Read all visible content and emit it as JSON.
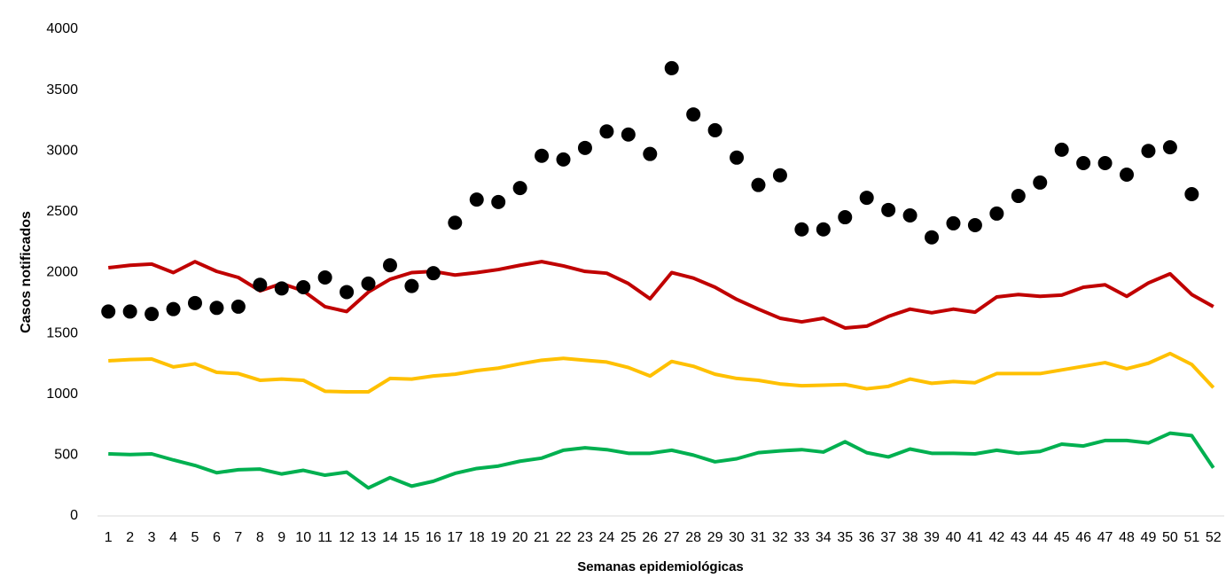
{
  "chart_data": {
    "type": "line",
    "x_label": "Semanas epidemiológicas",
    "y_label": "Casos notificados",
    "categories": [
      1,
      2,
      3,
      4,
      5,
      6,
      7,
      8,
      9,
      10,
      11,
      12,
      13,
      14,
      15,
      16,
      17,
      18,
      19,
      20,
      21,
      22,
      23,
      24,
      25,
      26,
      27,
      28,
      29,
      30,
      31,
      32,
      33,
      34,
      35,
      36,
      37,
      38,
      39,
      40,
      41,
      42,
      43,
      44,
      45,
      46,
      47,
      48,
      49,
      50,
      51,
      52
    ],
    "ylim": [
      0,
      4000
    ],
    "yticks": [
      0,
      500,
      1000,
      1500,
      2000,
      2500,
      3000,
      3500,
      4000
    ],
    "grid": false,
    "series": [
      {
        "type": "line",
        "color": "#c00000",
        "values": [
          2040,
          2060,
          2070,
          2000,
          2090,
          2010,
          1960,
          1850,
          1910,
          1850,
          1720,
          1680,
          1840,
          1945,
          2000,
          2010,
          1980,
          2000,
          2025,
          2060,
          2090,
          2055,
          2010,
          1995,
          1910,
          1785,
          2000,
          1955,
          1880,
          1780,
          1700,
          1625,
          1595,
          1625,
          1545,
          1560,
          1640,
          1700,
          1670,
          1700,
          1675,
          1800,
          1820,
          1805,
          1815,
          1880,
          1900,
          1805,
          1915,
          1990,
          1820,
          1720
        ]
      },
      {
        "type": "line",
        "color": "#ffc000",
        "values": [
          1275,
          1285,
          1290,
          1225,
          1250,
          1180,
          1170,
          1115,
          1125,
          1115,
          1025,
          1020,
          1020,
          1130,
          1125,
          1150,
          1165,
          1195,
          1215,
          1250,
          1280,
          1295,
          1280,
          1265,
          1220,
          1150,
          1270,
          1230,
          1165,
          1130,
          1115,
          1085,
          1070,
          1075,
          1080,
          1045,
          1065,
          1125,
          1090,
          1105,
          1095,
          1170,
          1170,
          1170,
          1200,
          1230,
          1260,
          1210,
          1255,
          1335,
          1245,
          1055
        ]
      },
      {
        "type": "line",
        "color": "#00b050",
        "values": [
          510,
          505,
          510,
          460,
          415,
          355,
          380,
          385,
          345,
          375,
          335,
          360,
          230,
          315,
          245,
          285,
          350,
          390,
          410,
          450,
          475,
          540,
          560,
          545,
          515,
          515,
          540,
          500,
          445,
          470,
          520,
          535,
          545,
          525,
          610,
          520,
          485,
          550,
          515,
          515,
          510,
          540,
          515,
          530,
          590,
          575,
          620,
          620,
          600,
          680,
          660,
          395
        ]
      },
      {
        "type": "scatter",
        "color": "#000000",
        "values": [
          1680,
          1680,
          1660,
          1700,
          1750,
          1710,
          1720,
          1900,
          1870,
          1880,
          1960,
          1840,
          1910,
          2060,
          1890,
          1995,
          2410,
          2600,
          2580,
          2695,
          2960,
          2930,
          3025,
          3160,
          3135,
          2975,
          3680,
          3300,
          3170,
          2945,
          2720,
          2800,
          2355,
          2355,
          2455,
          2615,
          2515,
          2470,
          2290,
          2405,
          2390,
          2485,
          2630,
          2740,
          3010,
          2900,
          2900,
          2805,
          3000,
          3030,
          2645,
          null
        ]
      }
    ]
  }
}
